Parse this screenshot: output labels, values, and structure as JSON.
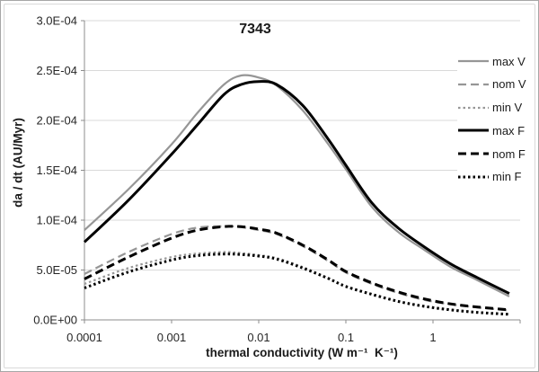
{
  "figure": {
    "border_color": "#a6a6a6",
    "background": "#ffffff"
  },
  "chart_data": {
    "type": "line",
    "title": "7343",
    "xlabel": "thermal conductivity (W m⁻¹  K⁻¹)",
    "ylabel": "da / dt (AU/Myr)",
    "x_scale": "log",
    "xlim": [
      0.0001,
      10
    ],
    "ylim": [
      0,
      0.0003
    ],
    "grid": true,
    "legend_position": "right",
    "colors": {
      "gray_series": "#969696",
      "black_series": "#000000",
      "gridline": "#d9d9d9",
      "axis": "#8c8c8c"
    },
    "x_ticks": {
      "values": [
        0.0001,
        0.001,
        0.01,
        0.1,
        1
      ],
      "labels": [
        "0.0001",
        "0.001",
        "0.01",
        "0.1",
        "1"
      ]
    },
    "y_ticks": {
      "values": [
        0,
        5e-05,
        0.0001,
        0.00015,
        0.0002,
        0.00025,
        0.0003
      ],
      "labels": [
        "0.0E+00",
        "5.0E-05",
        "1.0E-04",
        "1.5E-04",
        "2.0E-04",
        "2.5E-04",
        "3.0E-04"
      ]
    },
    "x": [
      0.0001,
      0.00032,
      0.001,
      0.002,
      0.004,
      0.0063,
      0.01,
      0.016,
      0.032,
      0.063,
      0.1,
      0.2,
      0.4,
      0.8,
      1.6,
      3.2,
      7.5
    ],
    "series": [
      {
        "name": "max V",
        "color": "#969696",
        "style": "solid",
        "line_width": 2.2,
        "values": [
          9e-05,
          0.000131,
          0.000176,
          0.000208,
          0.000236,
          0.000245,
          0.000243,
          0.000235,
          0.00021,
          0.000176,
          0.000151,
          0.000113,
          8.8e-05,
          7e-05,
          5.3e-05,
          4e-05,
          2.35e-05
        ]
      },
      {
        "name": "nom V",
        "color": "#969696",
        "style": "dashed",
        "line_width": 2.2,
        "values": [
          4.6e-05,
          6.8e-05,
          8.6e-05,
          9.25e-05,
          9.4e-05,
          9.3e-05,
          9e-05,
          8.6e-05,
          7.4e-05,
          5.9e-05,
          4.75e-05,
          3.6e-05,
          2.7e-05,
          2e-05,
          1.55e-05,
          1.25e-05,
          9.5e-06
        ]
      },
      {
        "name": "min V",
        "color": "#969696",
        "style": "dotted",
        "line_width": 2.2,
        "values": [
          3.6e-05,
          5.2e-05,
          6.3e-05,
          6.65e-05,
          6.8e-05,
          6.7e-05,
          6.5e-05,
          6.2e-05,
          5.3e-05,
          4.2e-05,
          3.4e-05,
          2.6e-05,
          1.9e-05,
          1.4e-05,
          1.05e-05,
          8e-06,
          6e-06
        ]
      },
      {
        "name": "max F",
        "color": "#000000",
        "style": "solid",
        "line_width": 3,
        "values": [
          7.8e-05,
          0.00012,
          0.000166,
          0.000196,
          0.000226,
          0.000236,
          0.000239,
          0.000236,
          0.000215,
          0.000181,
          0.000155,
          0.000117,
          9.2e-05,
          7.3e-05,
          5.6e-05,
          4.25e-05,
          2.65e-05
        ]
      },
      {
        "name": "nom F",
        "color": "#000000",
        "style": "dashed",
        "line_width": 3,
        "values": [
          4.1e-05,
          6.3e-05,
          8.2e-05,
          9e-05,
          9.35e-05,
          9.35e-05,
          9.1e-05,
          8.7e-05,
          7.5e-05,
          6e-05,
          4.85e-05,
          3.7e-05,
          2.8e-05,
          2.1e-05,
          1.6e-05,
          1.3e-05,
          1e-05
        ]
      },
      {
        "name": "min F",
        "color": "#000000",
        "style": "dotted",
        "line_width": 3,
        "values": [
          3.2e-05,
          4.8e-05,
          6e-05,
          6.45e-05,
          6.6e-05,
          6.55e-05,
          6.4e-05,
          6.1e-05,
          5.2e-05,
          4.15e-05,
          3.35e-05,
          2.55e-05,
          1.85e-05,
          1.35e-05,
          1e-05,
          7.5e-06,
          5.5e-06
        ]
      }
    ]
  }
}
